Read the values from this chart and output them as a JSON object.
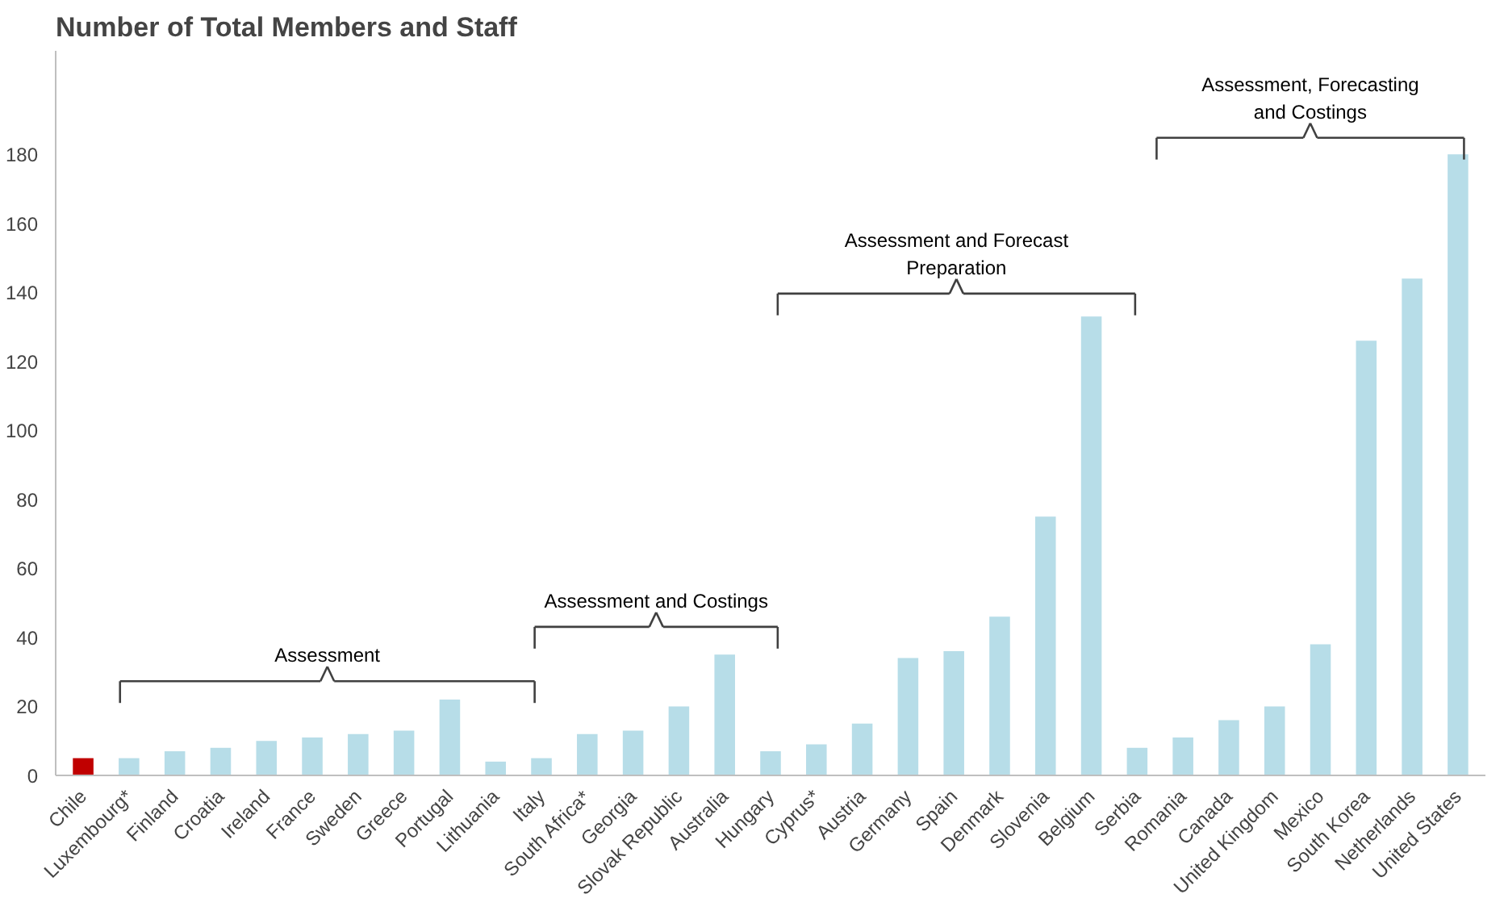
{
  "chart_data": {
    "type": "bar",
    "title": "Number of Total Members and Staff",
    "categories": [
      "Chile",
      "Luxembourg*",
      "Finland",
      "Croatia",
      "Ireland",
      "France",
      "Sweden",
      "Greece",
      "Portugal",
      "Lithuania",
      "Italy",
      "South Africa*",
      "Georgia",
      "Slovak Republic",
      "Australia",
      "Hungary",
      "Cyprus*",
      "Austria",
      "Germany",
      "Spain",
      "Denmark",
      "Slovenia",
      "Belgium",
      "Serbia",
      "Romania",
      "Canada",
      "United Kingdom",
      "Mexico",
      "South Korea",
      "Netherlands",
      "United States"
    ],
    "values": [
      5,
      5,
      7,
      8,
      10,
      11,
      12,
      13,
      22,
      4,
      5,
      12,
      13,
      20,
      35,
      7,
      9,
      15,
      34,
      36,
      46,
      75,
      133,
      8,
      11,
      16,
      20,
      38,
      126,
      144,
      180
    ],
    "colors": [
      "#c00000",
      "#b7dde8",
      "#b7dde8",
      "#b7dde8",
      "#b7dde8",
      "#b7dde8",
      "#b7dde8",
      "#b7dde8",
      "#b7dde8",
      "#b7dde8",
      "#b7dde8",
      "#b7dde8",
      "#b7dde8",
      "#b7dde8",
      "#b7dde8",
      "#b7dde8",
      "#b7dde8",
      "#b7dde8",
      "#b7dde8",
      "#b7dde8",
      "#b7dde8",
      "#b7dde8",
      "#b7dde8",
      "#b7dde8",
      "#b7dde8",
      "#b7dde8",
      "#b7dde8",
      "#b7dde8",
      "#b7dde8",
      "#b7dde8",
      "#b7dde8"
    ],
    "ylim": [
      0,
      210
    ],
    "yticks": [
      0,
      20,
      40,
      60,
      80,
      100,
      120,
      140,
      160,
      180
    ],
    "grid": false,
    "annotations": [
      "Assessment",
      "Assessment and Costings",
      "Assessment and Forecast\nPreparation",
      "Assessment, Forecasting\nand Costings"
    ]
  }
}
